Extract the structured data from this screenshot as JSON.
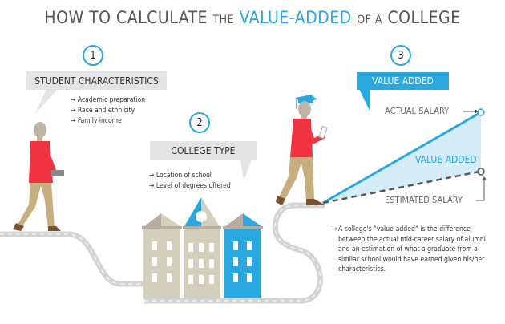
{
  "title": {
    "part1": "HOW TO CALCULATE",
    "part2": "THE",
    "part3": "VALUE-ADDED",
    "part4": "OF A",
    "part5": "COLLEGE"
  },
  "colors": {
    "accent": "#29a8e0",
    "light_accent": "#d4ecf8",
    "box_gray": "#e4e4e4",
    "shirt": "#ef3340",
    "pants": "#c8ad7f",
    "building_beige": "#d3cfbd",
    "road": "#d4d4d4"
  },
  "steps": [
    {
      "number": "1",
      "heading": "STUDENT CHARACTERISTICS",
      "bullets": [
        "Academic preparation",
        "Race and ethnicity",
        "Family income"
      ]
    },
    {
      "number": "2",
      "heading": "COLLEGE TYPE",
      "bullets": [
        "Location of school",
        "Level of degrees offered"
      ]
    },
    {
      "number": "3",
      "heading": "VALUE ADDED"
    }
  ],
  "chart": {
    "actual_label": "ACTUAL SALARY",
    "value_label": "VALUE ADDED",
    "estimated_label": "ESTIMATED SALARY"
  },
  "explanation": "A college's “value-added” is the difference between the actual mid-career salary of alumni and an estimation of what a graduate from a similar school would have earned given his/her characteristics.",
  "bullet_glyph": "→"
}
